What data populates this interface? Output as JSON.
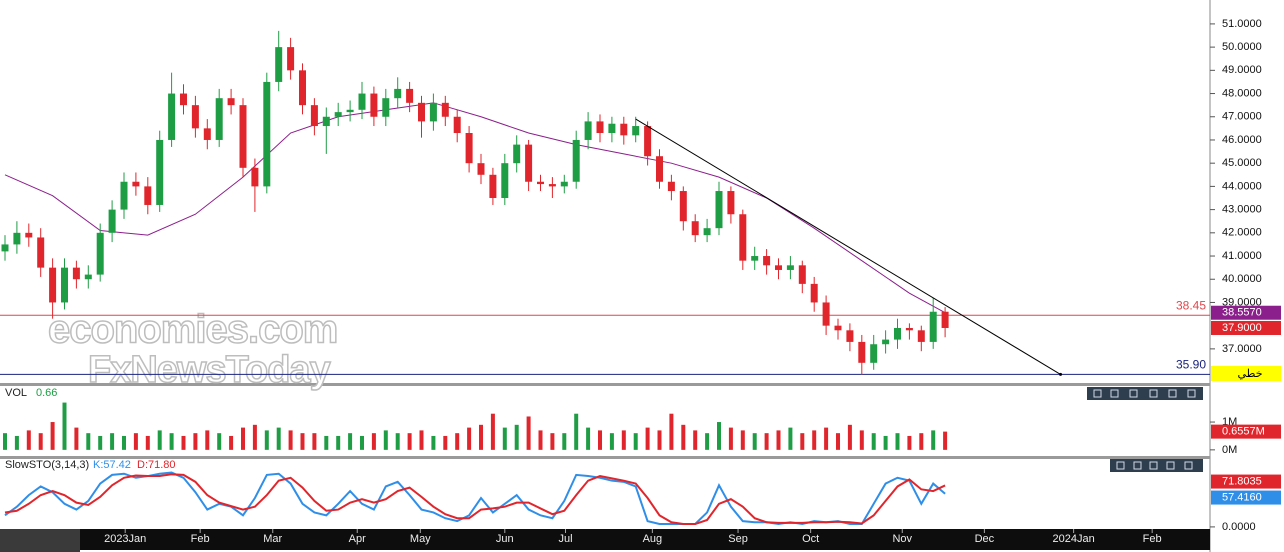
{
  "chart_data": [
    {
      "type": "candlestick",
      "open": [
        41.2,
        41.5,
        42.0,
        41.8,
        40.5,
        39.0,
        40.5,
        40.0,
        40.2,
        42.0,
        43.0,
        44.2,
        44.0,
        43.2,
        46.0,
        48.0,
        47.5,
        46.5,
        46.0,
        47.8,
        47.5,
        44.8,
        44.0,
        48.5,
        50.0,
        49.0,
        47.5,
        46.6,
        47.0,
        47.2,
        47.3,
        48.0,
        47.0,
        47.8,
        48.2,
        47.6,
        46.8,
        47.6,
        47.0,
        46.3,
        45.0,
        44.5,
        43.5,
        45.0,
        45.8,
        44.2,
        44.1,
        44.0,
        44.2,
        46.0,
        46.8,
        46.3,
        46.7,
        46.2,
        46.6,
        45.3,
        44.2,
        43.8,
        42.5,
        41.9,
        42.2,
        43.8,
        42.8,
        40.8,
        41.0,
        40.6,
        40.4,
        40.6,
        39.8,
        39.0,
        38.0,
        37.8,
        37.3,
        36.4,
        37.2,
        37.4,
        37.9,
        37.8,
        37.3,
        38.6
      ],
      "high": [
        41.9,
        42.5,
        42.4,
        42.2,
        40.9,
        40.9,
        40.8,
        40.6,
        42.4,
        43.4,
        44.6,
        44.6,
        44.4,
        46.4,
        48.9,
        48.4,
        47.9,
        46.9,
        48.2,
        48.2,
        47.8,
        45.2,
        48.9,
        50.7,
        50.4,
        49.3,
        47.8,
        47.4,
        47.6,
        47.7,
        48.5,
        48.3,
        48.2,
        48.7,
        48.5,
        47.9,
        48.0,
        47.9,
        47.3,
        46.6,
        45.4,
        44.8,
        45.4,
        46.2,
        46.0,
        44.5,
        44.4,
        44.5,
        46.4,
        47.2,
        47.1,
        47.0,
        47.0,
        47.0,
        46.8,
        45.6,
        44.5,
        44.0,
        42.8,
        42.6,
        44.2,
        44.0,
        43.0,
        41.4,
        41.3,
        40.9,
        41.0,
        40.8,
        40.1,
        39.3,
        38.3,
        38.1,
        37.6,
        37.6,
        37.8,
        38.3,
        38.1,
        38.0,
        39.2,
        38.8
      ],
      "low": [
        40.8,
        41.1,
        41.4,
        40.1,
        38.3,
        38.7,
        39.6,
        39.6,
        39.9,
        41.6,
        42.6,
        43.6,
        42.8,
        42.9,
        45.7,
        47.1,
        46.1,
        45.6,
        45.7,
        47.1,
        44.4,
        42.9,
        43.7,
        48.1,
        48.6,
        47.1,
        46.2,
        45.4,
        46.6,
        46.8,
        46.9,
        46.6,
        46.6,
        47.4,
        47.2,
        46.1,
        46.4,
        46.6,
        45.9,
        44.6,
        44.1,
        43.2,
        43.2,
        44.6,
        43.8,
        43.8,
        43.5,
        43.7,
        43.9,
        45.6,
        45.9,
        45.9,
        45.8,
        45.9,
        44.9,
        43.9,
        43.4,
        42.1,
        41.6,
        41.6,
        41.9,
        42.4,
        40.4,
        40.4,
        40.2,
        40.0,
        40.0,
        39.4,
        38.6,
        37.6,
        37.4,
        36.9,
        35.9,
        36.1,
        36.8,
        37.0,
        37.4,
        36.9,
        37.0,
        37.5
      ],
      "close": [
        41.5,
        42.0,
        41.8,
        40.5,
        39.0,
        40.5,
        40.0,
        40.2,
        42.0,
        43.0,
        44.2,
        44.0,
        43.2,
        46.0,
        48.0,
        47.5,
        46.5,
        46.0,
        47.8,
        47.5,
        44.8,
        44.0,
        48.5,
        50.0,
        49.0,
        47.5,
        46.6,
        47.0,
        47.2,
        47.3,
        48.0,
        47.0,
        47.8,
        48.2,
        47.6,
        46.8,
        47.6,
        47.0,
        46.3,
        45.0,
        44.5,
        43.5,
        45.0,
        45.8,
        44.2,
        44.1,
        44.0,
        44.2,
        46.0,
        46.8,
        46.3,
        46.7,
        46.2,
        46.6,
        45.3,
        44.2,
        43.8,
        42.5,
        41.9,
        42.2,
        43.8,
        42.8,
        40.8,
        41.0,
        40.6,
        40.4,
        40.6,
        39.8,
        39.0,
        38.0,
        37.8,
        37.3,
        36.4,
        37.2,
        37.4,
        37.9,
        37.8,
        37.3,
        38.6,
        37.9
      ],
      "last_label": "37.9000",
      "up_color": "#1f9d45",
      "down_color": "#e0262c",
      "ma": {
        "x": [
          0,
          4,
          8,
          12,
          16,
          20,
          24,
          28,
          32,
          36,
          40,
          44,
          48,
          52,
          56,
          60,
          64,
          68,
          72,
          76,
          79
        ],
        "values": [
          44.5,
          43.6,
          42.1,
          41.9,
          42.8,
          44.4,
          46.3,
          47.0,
          47.3,
          47.6,
          47.0,
          46.3,
          45.8,
          45.4,
          45.0,
          44.4,
          43.5,
          42.2,
          40.8,
          39.4,
          38.557
        ],
        "color": "#8b1f8b",
        "last_label": "38.5570"
      },
      "hlines": [
        {
          "value": 38.45,
          "label": "38.45",
          "color": "#e0474c"
        },
        {
          "value": 35.9,
          "label": "35.90",
          "color": "#1a237e"
        }
      ],
      "trendline": {
        "x": [
          53,
          88.7
        ],
        "values": [
          46.9,
          35.9
        ],
        "color": "#000000"
      },
      "tag": "خطي",
      "watermark": [
        "economies.com",
        "FxNewsToday"
      ],
      "xlim": [
        -0.42,
        101.26
      ],
      "xticks": [
        {
          "value": 10.1,
          "label": "2023Jan"
        },
        {
          "value": 16.4,
          "label": "Feb"
        },
        {
          "value": 22.5,
          "label": "Mar"
        },
        {
          "value": 29.6,
          "label": "Apr"
        },
        {
          "value": 34.9,
          "label": "May"
        },
        {
          "value": 42.0,
          "label": "Jun"
        },
        {
          "value": 47.1,
          "label": "Jul"
        },
        {
          "value": 54.4,
          "label": "Aug"
        },
        {
          "value": 61.6,
          "label": "Sep"
        },
        {
          "value": 67.7,
          "label": "Oct"
        },
        {
          "value": 75.4,
          "label": "Nov"
        },
        {
          "value": 82.3,
          "label": "Dec"
        },
        {
          "value": 89.8,
          "label": "2024Jan"
        },
        {
          "value": 96.4,
          "label": "Feb"
        }
      ],
      "ylim": [
        35.53,
        52.03
      ],
      "yticks": [
        {
          "value": 37,
          "label": "37.0000"
        },
        {
          "value": 39,
          "label": "39.0000"
        },
        {
          "value": 40,
          "label": "40.0000"
        },
        {
          "value": 41,
          "label": "41.0000"
        },
        {
          "value": 42,
          "label": "42.0000"
        },
        {
          "value": 43,
          "label": "43.0000"
        },
        {
          "value": 44,
          "label": "44.0000"
        },
        {
          "value": 45,
          "label": "45.0000"
        },
        {
          "value": 46,
          "label": "46.0000"
        },
        {
          "value": 47,
          "label": "47.0000"
        },
        {
          "value": 48,
          "label": "48.0000"
        },
        {
          "value": 49,
          "label": "49.0000"
        },
        {
          "value": 50,
          "label": "50.0000"
        },
        {
          "value": 51,
          "label": "51.0000"
        }
      ]
    },
    {
      "type": "volume",
      "title": "VOL",
      "current": "0.66",
      "values": [
        0.6,
        0.5,
        0.7,
        0.6,
        1.0,
        1.7,
        0.8,
        0.6,
        0.5,
        0.6,
        0.5,
        0.6,
        0.5,
        0.7,
        0.6,
        0.5,
        0.6,
        0.7,
        0.6,
        0.5,
        0.8,
        0.9,
        0.7,
        0.8,
        0.7,
        0.6,
        0.6,
        0.5,
        0.5,
        0.6,
        0.5,
        0.6,
        0.7,
        0.6,
        0.6,
        0.7,
        0.5,
        0.5,
        0.6,
        0.8,
        0.9,
        1.3,
        0.8,
        0.9,
        1.2,
        0.7,
        0.6,
        0.6,
        1.3,
        0.8,
        0.7,
        0.6,
        0.7,
        0.6,
        0.8,
        0.7,
        1.3,
        0.9,
        0.7,
        0.6,
        1.0,
        0.8,
        0.7,
        0.6,
        0.6,
        0.7,
        0.8,
        0.6,
        0.7,
        0.8,
        0.6,
        0.9,
        0.7,
        0.6,
        0.5,
        0.6,
        0.5,
        0.6,
        0.7,
        0.6557
      ],
      "last_label": "0.6557M",
      "ylim": [
        -0.185,
        2.296
      ],
      "yticks": [
        {
          "value": 1,
          "label": "1M"
        },
        {
          "value": 0,
          "label": "0M"
        }
      ]
    },
    {
      "type": "stochastic",
      "title": "SlowSTO(3,14,3)",
      "series": [
        {
          "name": "K:57.42",
          "color": "#2f8fe8",
          "last_label": "57.4160",
          "values": [
            20,
            35,
            55,
            70,
            60,
            40,
            30,
            45,
            75,
            90,
            92,
            85,
            88,
            92,
            94,
            85,
            60,
            30,
            40,
            35,
            20,
            50,
            90,
            92,
            75,
            40,
            25,
            20,
            40,
            62,
            40,
            30,
            70,
            78,
            55,
            30,
            25,
            15,
            10,
            20,
            50,
            25,
            40,
            55,
            30,
            20,
            15,
            45,
            90,
            88,
            85,
            80,
            78,
            70,
            10,
            5,
            5,
            5,
            5,
            25,
            72,
            35,
            10,
            8,
            8,
            5,
            8,
            5,
            10,
            8,
            10,
            5,
            5,
            40,
            75,
            85,
            80,
            40,
            75,
            57.416
          ]
        },
        {
          "name": "D:71.80",
          "color": "#e0262c",
          "last_label": "71.8035",
          "values": [
            25,
            28,
            40,
            55,
            62,
            55,
            42,
            38,
            52,
            72,
            85,
            89,
            88,
            88,
            91,
            90,
            78,
            55,
            42,
            36,
            30,
            35,
            55,
            80,
            85,
            68,
            45,
            28,
            30,
            42,
            48,
            42,
            48,
            62,
            68,
            52,
            35,
            22,
            15,
            15,
            30,
            32,
            35,
            42,
            42,
            32,
            22,
            28,
            55,
            80,
            88,
            84,
            80,
            75,
            50,
            20,
            8,
            5,
            5,
            12,
            40,
            48,
            35,
            15,
            8,
            7,
            7,
            7,
            8,
            8,
            9,
            8,
            6,
            20,
            45,
            70,
            82,
            65,
            62,
            71.8035
          ]
        }
      ],
      "ylim": [
        -14,
        117.5
      ],
      "yticks": [
        {
          "value": 0,
          "label": "0.0000"
        }
      ]
    }
  ]
}
